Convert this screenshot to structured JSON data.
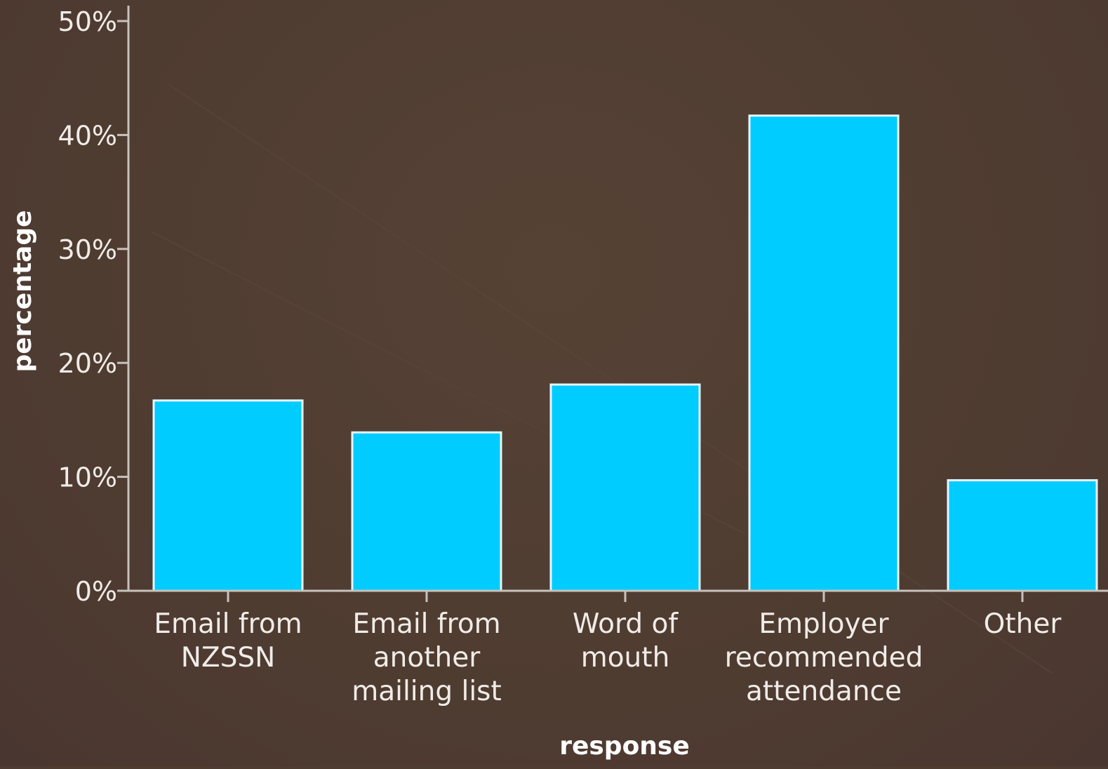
{
  "chart_data": {
    "type": "bar",
    "categories": [
      [
        "Email from",
        "NZSSN"
      ],
      [
        "Email from",
        "another",
        "mailing list"
      ],
      [
        "Word of",
        "mouth"
      ],
      [
        "Employer",
        "recommended",
        "attendance"
      ],
      [
        "Other"
      ]
    ],
    "values": [
      16.7,
      13.9,
      18.1,
      41.7,
      9.7
    ],
    "xlabel": "response",
    "ylabel": "percentage",
    "ylim": [
      0,
      50
    ],
    "yticks": [
      "0%",
      "10%",
      "20%",
      "30%",
      "40%",
      "50%"
    ],
    "grid": false,
    "colors": {
      "bar": "#00ccff",
      "bar_edge": "#e8f6ff",
      "axis": "#c8c2bc",
      "background": "#4f3c31"
    }
  }
}
